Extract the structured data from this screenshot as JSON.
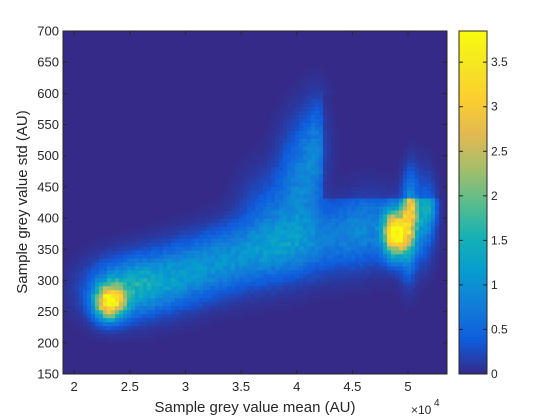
{
  "chart_data": {
    "type": "heatmap",
    "title": "",
    "xlabel": "Sample grey value mean (AU)",
    "ylabel": "Sample grey value std (AU)",
    "x_multiplier_base": "×10",
    "x_multiplier_exp": "4",
    "xlim": [
      19000,
      53500
    ],
    "ylim": [
      150,
      700
    ],
    "x_ticks": [
      {
        "value": 20000,
        "label": "2"
      },
      {
        "value": 25000,
        "label": "2.5"
      },
      {
        "value": 30000,
        "label": "3"
      },
      {
        "value": 35000,
        "label": "3.5"
      },
      {
        "value": 40000,
        "label": "4"
      },
      {
        "value": 45000,
        "label": "4.5"
      },
      {
        "value": 50000,
        "label": "5"
      }
    ],
    "y_ticks": [
      {
        "value": 150,
        "label": "150"
      },
      {
        "value": 200,
        "label": "200"
      },
      {
        "value": 250,
        "label": "250"
      },
      {
        "value": 300,
        "label": "300"
      },
      {
        "value": 350,
        "label": "350"
      },
      {
        "value": 400,
        "label": "400"
      },
      {
        "value": 450,
        "label": "450"
      },
      {
        "value": 500,
        "label": "500"
      },
      {
        "value": 550,
        "label": "550"
      },
      {
        "value": 600,
        "label": "600"
      },
      {
        "value": 650,
        "label": "650"
      },
      {
        "value": 700,
        "label": "700"
      }
    ],
    "colorbar": {
      "colormap": "parula",
      "range": [
        0,
        3.85
      ],
      "ticks": [
        {
          "value": 0,
          "label": "0"
        },
        {
          "value": 0.5,
          "label": "0.5"
        },
        {
          "value": 1,
          "label": "1"
        },
        {
          "value": 1.5,
          "label": "1.5"
        },
        {
          "value": 2,
          "label": "2"
        },
        {
          "value": 2.5,
          "label": "2.5"
        },
        {
          "value": 3,
          "label": "3"
        },
        {
          "value": 3.5,
          "label": "3.5"
        }
      ]
    },
    "density_components": [
      {
        "x": 23200,
        "y": 265,
        "sx": 900,
        "sy": 18,
        "peak": 3.4
      },
      {
        "x": 24500,
        "y": 285,
        "sx": 2200,
        "sy": 30,
        "peak": 1.1
      },
      {
        "x": 28000,
        "y": 300,
        "sx": 2500,
        "sy": 30,
        "peak": 0.9
      },
      {
        "x": 32000,
        "y": 325,
        "sx": 2500,
        "sy": 32,
        "peak": 0.75
      },
      {
        "x": 36000,
        "y": 345,
        "sx": 2400,
        "sy": 32,
        "peak": 0.7
      },
      {
        "x": 40000,
        "y": 360,
        "sx": 2000,
        "sy": 35,
        "peak": 0.6
      },
      {
        "x": 44000,
        "y": 370,
        "sx": 2200,
        "sy": 35,
        "peak": 0.55
      },
      {
        "x": 37500,
        "y": 395,
        "sx": 1800,
        "sy": 50,
        "peak": 0.45
      },
      {
        "x": 40000,
        "y": 455,
        "sx": 1200,
        "sy": 60,
        "peak": 0.6
      },
      {
        "x": 42000,
        "y": 520,
        "sx": 800,
        "sy": 45,
        "peak": 0.5
      },
      {
        "x": 41200,
        "y": 480,
        "sx": 900,
        "sy": 60,
        "peak": 0.35
      },
      {
        "x": 46500,
        "y": 395,
        "sx": 1800,
        "sy": 40,
        "peak": 0.6
      },
      {
        "x": 48800,
        "y": 375,
        "sx": 700,
        "sy": 25,
        "peak": 3.6
      },
      {
        "x": 50000,
        "y": 390,
        "sx": 500,
        "sy": 45,
        "peak": 2.0
      },
      {
        "x": 50300,
        "y": 430,
        "sx": 400,
        "sy": 35,
        "peak": 1.3
      },
      {
        "x": 51300,
        "y": 410,
        "sx": 700,
        "sy": 45,
        "peak": 1.1
      },
      {
        "x": 52000,
        "y": 425,
        "sx": 400,
        "sy": 25,
        "peak": 0.7
      }
    ]
  }
}
